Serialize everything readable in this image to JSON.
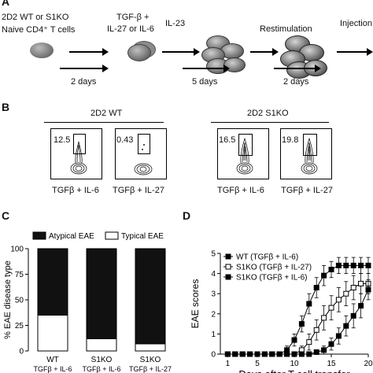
{
  "panel_a": {
    "label": "A",
    "cells_text": [
      "2D2 WT or S1KO",
      "Naive CD4⁺ T cells"
    ],
    "culture_text": [
      "TGF-β +",
      "IL-27 or IL-6"
    ],
    "il23": "IL-23",
    "restimulation": "Restimulation",
    "injection": "Injection",
    "day1": "2 days",
    "day2": "5 days",
    "day3": "2 days"
  },
  "panel_b": {
    "label": "B",
    "wt_title": "2D2 WT",
    "ko_title": "2D2 S1KO",
    "plots": [
      {
        "pct": "12.5",
        "condition": "TGFβ + IL-6"
      },
      {
        "pct": "0.43",
        "condition": "TGFβ + IL-27"
      },
      {
        "pct": "16.5",
        "condition": "TGFβ + IL-6"
      },
      {
        "pct": "19.8",
        "condition": "TGFβ + IL-27"
      }
    ]
  },
  "panel_c_label": "C",
  "panel_d_label": "D",
  "chart_data": [
    {
      "type": "bar",
      "subtype": "stacked-percent",
      "ylabel": "% EAE disease type",
      "ylim": [
        0,
        100
      ],
      "yticks": [
        0,
        25,
        50,
        75,
        100
      ],
      "categories": [
        {
          "line1": "WT",
          "line2": "TGFβ + IL-6"
        },
        {
          "line1": "S1KO",
          "line2": "TGFβ + IL-6"
        },
        {
          "line1": "S1KO",
          "line2": "TGFβ + IL-27"
        }
      ],
      "series": [
        {
          "name": "Typical EAE",
          "color": "#ffffff",
          "values": [
            35,
            12,
            7
          ]
        },
        {
          "name": "Atypical EAE",
          "color": "#111111",
          "values": [
            65,
            88,
            93
          ]
        }
      ],
      "legend_position": "top"
    },
    {
      "type": "line",
      "xlabel": "Days after T cell transfer",
      "ylabel": "EAE scores",
      "xlim": [
        0,
        20
      ],
      "ylim": [
        0,
        5
      ],
      "xticks": [
        1,
        5,
        10,
        15,
        20
      ],
      "yticks": [
        0,
        1,
        2,
        3,
        4,
        5
      ],
      "x": [
        1,
        2,
        3,
        4,
        5,
        6,
        7,
        8,
        9,
        10,
        11,
        12,
        13,
        14,
        15,
        16,
        17,
        18,
        19,
        20
      ],
      "series": [
        {
          "name": "WT (TGFβ + IL-6)",
          "marker": "filled-square",
          "values": [
            0,
            0,
            0,
            0,
            0,
            0,
            0,
            0,
            0.2,
            0.7,
            1.5,
            2.5,
            3.3,
            3.9,
            4.2,
            4.4,
            4.4,
            4.4,
            4.4,
            4.4
          ],
          "errors": [
            0,
            0,
            0,
            0,
            0,
            0,
            0,
            0,
            0.2,
            0.3,
            0.4,
            0.5,
            0.5,
            0.5,
            0.4,
            0.4,
            0.4,
            0.4,
            0.4,
            0.4
          ]
        },
        {
          "name": "S1KO (TGFβ + IL-27)",
          "marker": "open-square",
          "values": [
            0,
            0,
            0,
            0,
            0,
            0,
            0,
            0,
            0,
            0,
            0.2,
            0.6,
            1.2,
            1.8,
            2.3,
            2.7,
            3.0,
            3.3,
            3.5,
            3.5
          ],
          "errors": [
            0,
            0,
            0,
            0,
            0,
            0,
            0,
            0,
            0,
            0,
            0.2,
            0.4,
            0.5,
            0.6,
            0.6,
            0.6,
            0.6,
            0.6,
            0.5,
            0.5
          ]
        },
        {
          "name": "S1KO (TGFβ + IL-6)",
          "marker": "filled-square",
          "values": [
            0,
            0,
            0,
            0,
            0,
            0,
            0,
            0,
            0,
            0,
            0,
            0,
            0.1,
            0.2,
            0.5,
            0.9,
            1.4,
            1.9,
            2.4,
            3.2
          ],
          "errors": [
            0,
            0,
            0,
            0,
            0,
            0,
            0,
            0,
            0,
            0,
            0,
            0,
            0.1,
            0.2,
            0.3,
            0.4,
            0.5,
            0.6,
            0.6,
            0.5
          ]
        }
      ],
      "legend_position": "top-left"
    }
  ]
}
